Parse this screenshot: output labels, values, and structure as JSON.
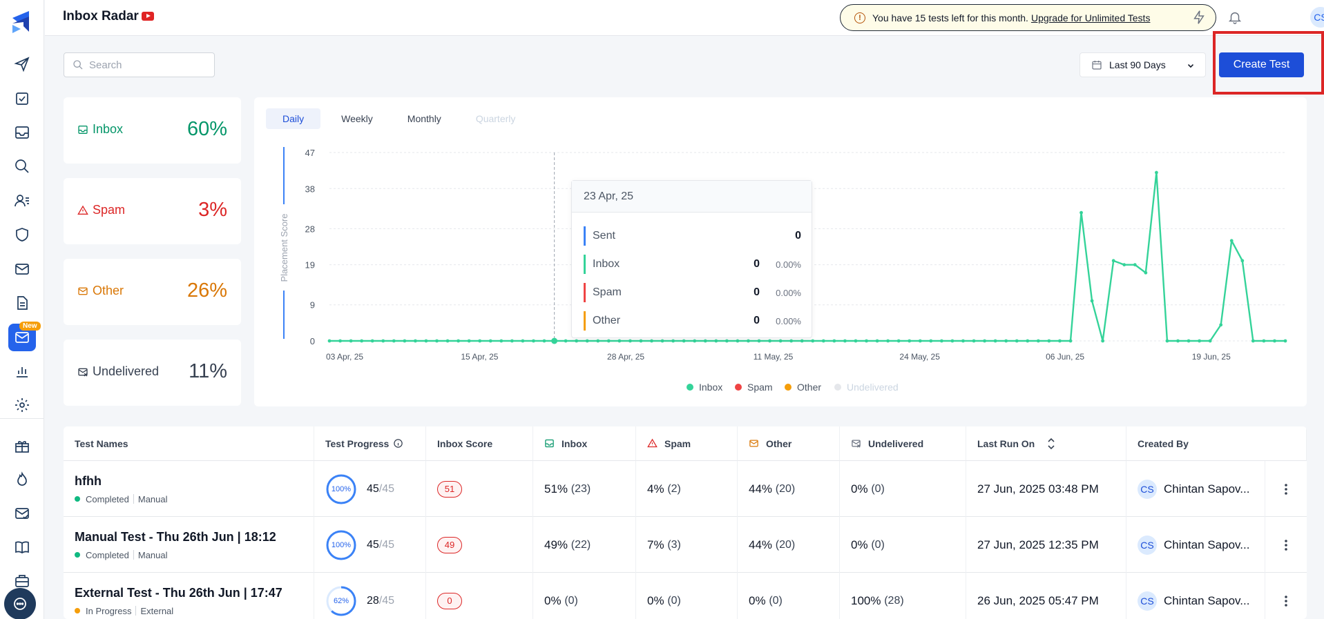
{
  "header": {
    "title": "Inbox Radar",
    "notice_text": "You have 15 tests left for this month.",
    "notice_link": "Upgrade for Unlimited Tests",
    "avatar_initials": "CS"
  },
  "sidebar": {
    "new_badge": "New",
    "items": [
      "send-icon",
      "checklist-icon",
      "inbox-icon",
      "search-icon",
      "users-icon",
      "shield-icon",
      "mail-icon",
      "document-icon",
      "inbox-radar-icon",
      "bar-chart-icon",
      "gear-icon",
      "gift-icon",
      "fire-icon",
      "mail-check-icon",
      "book-icon",
      "briefcase-icon"
    ]
  },
  "controls": {
    "search_placeholder": "Search",
    "date_range": "Last 90 Days",
    "create_button": "Create Test"
  },
  "stats": [
    {
      "label": "Inbox",
      "value": "60%",
      "color": "#059669"
    },
    {
      "label": "Spam",
      "value": "3%",
      "color": "#dc2626"
    },
    {
      "label": "Other",
      "value": "26%",
      "color": "#d97706"
    },
    {
      "label": "Undelivered",
      "value": "11%",
      "color": "#374151"
    }
  ],
  "chart": {
    "tabs": [
      "Daily",
      "Weekly",
      "Monthly",
      "Quarterly"
    ],
    "active_tab": "Daily"
  },
  "tooltip": {
    "date": "23 Apr, 25",
    "rows": [
      {
        "label": "Sent",
        "value": "0",
        "pct": "",
        "color": "#3b82f6"
      },
      {
        "label": "Inbox",
        "value": "0",
        "pct": "0.00%",
        "color": "#34d399"
      },
      {
        "label": "Spam",
        "value": "0",
        "pct": "0.00%",
        "color": "#ef4444"
      },
      {
        "label": "Other",
        "value": "0",
        "pct": "0.00%",
        "color": "#f59e0b"
      }
    ]
  },
  "chart_data": {
    "type": "line",
    "ylabel": "Placement Score",
    "ylim": [
      0,
      47
    ],
    "yticks": [
      0,
      9,
      19,
      28,
      38,
      47
    ],
    "xtick_labels": [
      "03 Apr, 25",
      "15 Apr, 25",
      "28 Apr, 25",
      "11 May, 25",
      "24 May, 25",
      "06 Jun, 25",
      "19 Jun, 25"
    ],
    "x_start": "03 Apr, 25",
    "x_end": "27 Jun, 25",
    "hover_x": "23 Apr, 25",
    "legend": [
      "Inbox",
      "Spam",
      "Other",
      "Undelivered"
    ],
    "legend_colors": [
      "#34d399",
      "#ef4444",
      "#f59e0b",
      "#e5e7eb"
    ],
    "legend_placement": "bottom-center",
    "grid": true,
    "series": [
      {
        "name": "Inbox",
        "color": "#34d399",
        "values": [
          0,
          0,
          0,
          0,
          0,
          0,
          0,
          0,
          0,
          0,
          0,
          0,
          0,
          0,
          0,
          0,
          0,
          0,
          0,
          0,
          0,
          0,
          0,
          0,
          0,
          0,
          0,
          0,
          0,
          0,
          0,
          0,
          0,
          0,
          0,
          0,
          0,
          0,
          0,
          0,
          0,
          0,
          0,
          0,
          0,
          0,
          0,
          0,
          0,
          0,
          0,
          0,
          0,
          0,
          0,
          0,
          0,
          0,
          0,
          0,
          0,
          0,
          0,
          0,
          0,
          0,
          0,
          0,
          0,
          0,
          32,
          10,
          0,
          20,
          19,
          19,
          17,
          42,
          0,
          0,
          0,
          0,
          0,
          4,
          25,
          20,
          0,
          0,
          0,
          0
        ]
      }
    ]
  },
  "table": {
    "headers": [
      "Test Names",
      "Test Progress",
      "Inbox Score",
      "Inbox",
      "Spam",
      "Other",
      "Undelivered",
      "Last Run On",
      "Created By"
    ],
    "rows": [
      {
        "name": "hfhh",
        "status": "Completed",
        "status_color": "#10b981",
        "type": "Manual",
        "progress_pct": "100%",
        "progress_frac": 1.0,
        "done": "45",
        "total": "/45",
        "score": "51",
        "inbox": "51%",
        "inbox_n": "(23)",
        "spam": "4%",
        "spam_n": "(2)",
        "other": "44%",
        "other_n": "(20)",
        "undelivered": "0%",
        "undelivered_n": "(0)",
        "last_run": "27 Jun, 2025 03:48 PM",
        "creator_initials": "CS",
        "creator": "Chintan Sapov..."
      },
      {
        "name": "Manual Test - Thu 26th Jun | 18:12",
        "status": "Completed",
        "status_color": "#10b981",
        "type": "Manual",
        "progress_pct": "100%",
        "progress_frac": 1.0,
        "done": "45",
        "total": "/45",
        "score": "49",
        "inbox": "49%",
        "inbox_n": "(22)",
        "spam": "7%",
        "spam_n": "(3)",
        "other": "44%",
        "other_n": "(20)",
        "undelivered": "0%",
        "undelivered_n": "(0)",
        "last_run": "27 Jun, 2025 12:35 PM",
        "creator_initials": "CS",
        "creator": "Chintan Sapov..."
      },
      {
        "name": "External Test - Thu 26th Jun | 17:47",
        "status": "In Progress",
        "status_color": "#f59e0b",
        "type": "External",
        "progress_pct": "62%",
        "progress_frac": 0.62,
        "done": "28",
        "total": "/45",
        "score": "0",
        "inbox": "0%",
        "inbox_n": "(0)",
        "spam": "0%",
        "spam_n": "(0)",
        "other": "0%",
        "other_n": "(0)",
        "undelivered": "100%",
        "undelivered_n": "(28)",
        "last_run": "26 Jun, 2025 05:47 PM",
        "creator_initials": "CS",
        "creator": "Chintan Sapov..."
      }
    ]
  }
}
